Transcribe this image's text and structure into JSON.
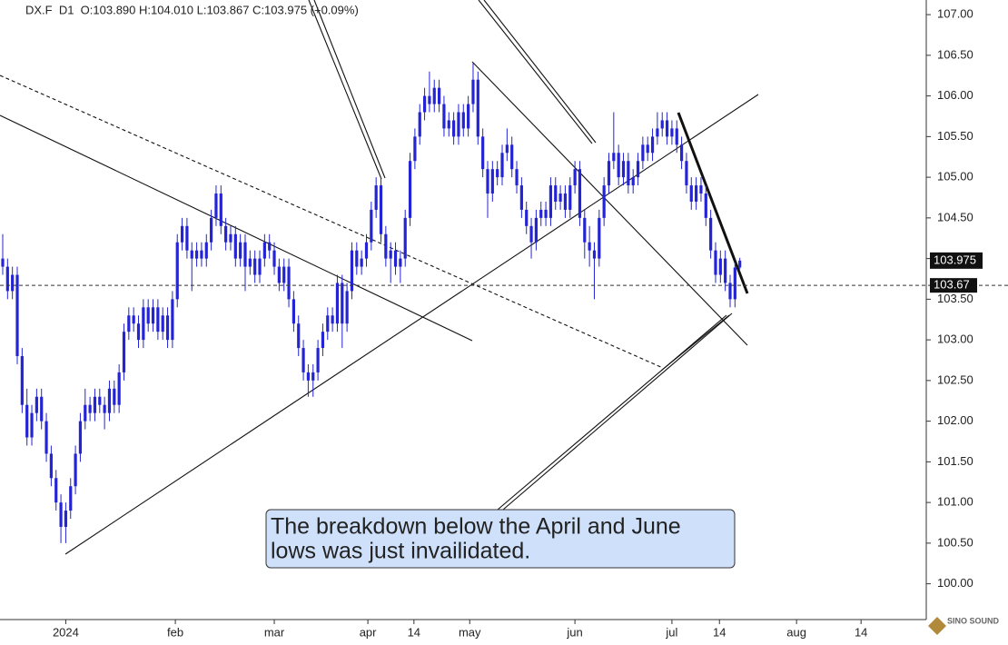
{
  "chart_data": {
    "type": "candlestick",
    "header": "DX.F  D1  O:103.890 H:104.010 L:103.867 C:103.975 (+0.09%)",
    "color": "#2424d4",
    "ylim": [
      99.56,
      107.18
    ],
    "yticks": [
      {
        "value": 100,
        "label": "100.00"
      },
      {
        "value": 100.5,
        "label": "100.50"
      },
      {
        "value": 101,
        "label": "101.00"
      },
      {
        "value": 101.5,
        "label": "101.50"
      },
      {
        "value": 102,
        "label": "102.00"
      },
      {
        "value": 102.5,
        "label": "102.50"
      },
      {
        "value": 103,
        "label": "103.00"
      },
      {
        "value": 103.5,
        "label": "103.50"
      },
      {
        "value": 104,
        "label": "104.00"
      },
      {
        "value": 104.5,
        "label": "104.50"
      },
      {
        "value": 105,
        "label": "105.00"
      },
      {
        "value": 105.5,
        "label": "105.50"
      },
      {
        "value": 106,
        "label": "106.00"
      },
      {
        "value": 106.5,
        "label": "106.50"
      },
      {
        "value": 107,
        "label": "107.00"
      }
    ],
    "xlim": [
      -0.56,
      190.45
    ],
    "xticks": [
      {
        "value": 13,
        "label": "2024"
      },
      {
        "value": 35.6,
        "label": "feb"
      },
      {
        "value": 56,
        "label": "mar"
      },
      {
        "value": 75.3,
        "label": "apr"
      },
      {
        "value": 84.8,
        "label": "14"
      },
      {
        "value": 96.3,
        "label": "may"
      },
      {
        "value": 118,
        "label": "jun"
      },
      {
        "value": 138,
        "label": "jul"
      },
      {
        "value": 147.8,
        "label": "14"
      },
      {
        "value": 163.7,
        "label": "aug"
      },
      {
        "value": 177,
        "label": "14"
      }
    ],
    "hline": 103.67,
    "annotation": [
      "The breakdown below the April and June",
      "lows was just invailidated."
    ],
    "watermark": "SINO SOUND",
    "candles": [
      [
        104.0,
        104.3,
        103.8,
        103.9
      ],
      [
        103.9,
        104.0,
        103.5,
        103.6
      ],
      [
        103.6,
        103.9,
        103.5,
        103.8
      ],
      [
        103.8,
        103.9,
        102.7,
        102.8
      ],
      [
        102.8,
        102.9,
        102.1,
        102.2
      ],
      [
        102.2,
        102.4,
        101.7,
        101.8
      ],
      [
        101.8,
        102.2,
        101.7,
        102.1
      ],
      [
        102.1,
        102.4,
        102.0,
        102.3
      ],
      [
        102.3,
        102.4,
        101.9,
        102.0
      ],
      [
        102.0,
        102.1,
        101.5,
        101.6
      ],
      [
        101.6,
        101.7,
        101.2,
        101.3
      ],
      [
        101.3,
        101.4,
        100.9,
        101.0
      ],
      [
        101.0,
        101.1,
        100.5,
        100.7
      ],
      [
        100.7,
        101.0,
        100.5,
        100.9
      ],
      [
        100.9,
        101.3,
        100.8,
        101.2
      ],
      [
        101.2,
        101.7,
        101.1,
        101.6
      ],
      [
        101.6,
        102.1,
        101.5,
        102.0
      ],
      [
        102.0,
        102.4,
        101.9,
        102.2
      ],
      [
        102.2,
        102.3,
        102.0,
        102.1
      ],
      [
        102.1,
        102.4,
        102.0,
        102.3
      ],
      [
        102.3,
        102.4,
        102.1,
        102.2
      ],
      [
        102.2,
        102.3,
        101.9,
        102.1
      ],
      [
        102.1,
        102.5,
        102.0,
        102.4
      ],
      [
        102.4,
        102.5,
        102.1,
        102.2
      ],
      [
        102.2,
        102.7,
        102.1,
        102.6
      ],
      [
        102.6,
        103.2,
        102.5,
        103.1
      ],
      [
        103.1,
        103.4,
        103.0,
        103.3
      ],
      [
        103.3,
        103.4,
        103.1,
        103.2
      ],
      [
        103.2,
        103.3,
        102.9,
        103.0
      ],
      [
        103.0,
        103.5,
        102.9,
        103.4
      ],
      [
        103.4,
        103.5,
        103.1,
        103.2
      ],
      [
        103.2,
        103.5,
        103.1,
        103.4
      ],
      [
        103.4,
        103.5,
        103.0,
        103.1
      ],
      [
        103.1,
        103.4,
        103.0,
        103.3
      ],
      [
        103.3,
        103.4,
        102.9,
        103.0
      ],
      [
        103.0,
        103.6,
        102.9,
        103.5
      ],
      [
        103.5,
        104.3,
        103.4,
        104.2
      ],
      [
        104.2,
        104.5,
        104.1,
        104.4
      ],
      [
        104.4,
        104.5,
        104.0,
        104.1
      ],
      [
        104.1,
        104.2,
        103.6,
        104.0
      ],
      [
        104.0,
        104.2,
        103.9,
        104.1
      ],
      [
        104.1,
        104.2,
        103.9,
        104.0
      ],
      [
        104.0,
        104.3,
        103.9,
        104.2
      ],
      [
        104.2,
        104.6,
        104.1,
        104.5
      ],
      [
        104.5,
        104.9,
        104.4,
        104.8
      ],
      [
        104.8,
        104.9,
        104.3,
        104.4
      ],
      [
        104.4,
        104.5,
        104.1,
        104.2
      ],
      [
        104.2,
        104.4,
        104.1,
        104.3
      ],
      [
        104.3,
        104.4,
        103.9,
        104.0
      ],
      [
        104.0,
        104.3,
        103.9,
        104.2
      ],
      [
        104.2,
        104.3,
        103.6,
        103.9
      ],
      [
        103.9,
        104.1,
        103.8,
        104.0
      ],
      [
        104.0,
        104.1,
        103.7,
        103.8
      ],
      [
        103.8,
        104.1,
        103.7,
        104.0
      ],
      [
        104.0,
        104.3,
        103.9,
        104.2
      ],
      [
        104.2,
        104.3,
        104.0,
        104.1
      ],
      [
        104.1,
        104.2,
        103.8,
        103.9
      ],
      [
        103.9,
        104.0,
        103.6,
        103.7
      ],
      [
        103.7,
        104.0,
        103.6,
        103.9
      ],
      [
        103.9,
        104.0,
        103.4,
        103.5
      ],
      [
        103.5,
        103.6,
        103.1,
        103.2
      ],
      [
        103.2,
        103.3,
        102.8,
        102.9
      ],
      [
        102.9,
        103.0,
        102.5,
        102.6
      ],
      [
        102.6,
        102.7,
        102.3,
        102.5
      ],
      [
        102.5,
        102.7,
        102.3,
        102.6
      ],
      [
        102.6,
        103.0,
        102.5,
        102.9
      ],
      [
        102.9,
        103.2,
        102.8,
        103.1
      ],
      [
        103.1,
        103.4,
        103.0,
        103.3
      ],
      [
        103.3,
        103.4,
        103.1,
        103.2
      ],
      [
        103.2,
        103.8,
        103.1,
        103.7
      ],
      [
        103.7,
        103.8,
        102.9,
        103.2
      ],
      [
        103.2,
        103.7,
        103.1,
        103.6
      ],
      [
        103.6,
        104.2,
        103.5,
        104.1
      ],
      [
        104.1,
        104.2,
        103.8,
        103.9
      ],
      [
        103.9,
        104.1,
        103.8,
        104.0
      ],
      [
        104.0,
        104.3,
        103.9,
        104.2
      ],
      [
        104.2,
        104.7,
        104.1,
        104.6
      ],
      [
        104.6,
        105.0,
        104.5,
        104.9
      ],
      [
        104.9,
        105.0,
        104.2,
        104.3
      ],
      [
        104.3,
        104.4,
        103.9,
        104.0
      ],
      [
        104.0,
        104.2,
        103.7,
        104.1
      ],
      [
        104.1,
        104.2,
        103.8,
        103.9
      ],
      [
        103.9,
        104.1,
        103.7,
        104.0
      ],
      [
        104.0,
        104.6,
        103.9,
        104.5
      ],
      [
        104.5,
        105.3,
        104.4,
        105.2
      ],
      [
        105.2,
        105.6,
        105.1,
        105.5
      ],
      [
        105.5,
        105.9,
        105.4,
        105.8
      ],
      [
        105.8,
        106.1,
        105.7,
        106.0
      ],
      [
        106.0,
        106.3,
        105.8,
        105.9
      ],
      [
        105.9,
        106.2,
        105.8,
        106.1
      ],
      [
        106.1,
        106.2,
        105.8,
        105.9
      ],
      [
        105.9,
        106.0,
        105.5,
        105.6
      ],
      [
        105.6,
        105.8,
        105.5,
        105.7
      ],
      [
        105.7,
        105.8,
        105.4,
        105.5
      ],
      [
        105.5,
        105.9,
        105.4,
        105.8
      ],
      [
        105.8,
        105.9,
        105.5,
        105.6
      ],
      [
        105.6,
        106.0,
        105.5,
        105.9
      ],
      [
        105.9,
        106.4,
        105.8,
        106.2
      ],
      [
        106.2,
        106.3,
        105.4,
        105.5
      ],
      [
        105.5,
        105.6,
        105.0,
        105.1
      ],
      [
        105.1,
        105.2,
        104.5,
        104.8
      ],
      [
        104.8,
        105.2,
        104.7,
        105.1
      ],
      [
        105.1,
        105.2,
        104.9,
        105.0
      ],
      [
        105.0,
        105.4,
        104.9,
        105.3
      ],
      [
        105.3,
        105.6,
        105.2,
        105.4
      ],
      [
        105.4,
        105.5,
        105.0,
        105.1
      ],
      [
        105.1,
        105.2,
        104.8,
        104.9
      ],
      [
        104.9,
        105.0,
        104.5,
        104.6
      ],
      [
        104.6,
        104.7,
        104.3,
        104.4
      ],
      [
        104.4,
        104.5,
        104.0,
        104.2
      ],
      [
        104.2,
        104.6,
        104.1,
        104.5
      ],
      [
        104.5,
        104.7,
        104.4,
        104.6
      ],
      [
        104.6,
        104.7,
        104.4,
        104.5
      ],
      [
        104.5,
        105.0,
        104.4,
        104.9
      ],
      [
        104.9,
        105.0,
        104.6,
        104.7
      ],
      [
        104.7,
        104.9,
        104.6,
        104.8
      ],
      [
        104.8,
        104.9,
        104.5,
        104.6
      ],
      [
        104.6,
        105.0,
        104.5,
        104.9
      ],
      [
        104.9,
        105.2,
        104.8,
        105.1
      ],
      [
        105.1,
        105.2,
        104.4,
        104.5
      ],
      [
        104.5,
        104.6,
        104.0,
        104.2
      ],
      [
        104.2,
        104.4,
        103.9,
        104.1
      ],
      [
        104.1,
        104.2,
        103.5,
        104.0
      ],
      [
        104.0,
        104.6,
        103.9,
        104.5
      ],
      [
        104.5,
        105.0,
        104.4,
        104.9
      ],
      [
        104.9,
        105.3,
        104.8,
        105.2
      ],
      [
        105.2,
        105.8,
        105.1,
        105.3
      ],
      [
        105.3,
        105.4,
        104.9,
        105.0
      ],
      [
        105.0,
        105.3,
        104.9,
        105.2
      ],
      [
        105.2,
        105.3,
        104.8,
        104.9
      ],
      [
        104.9,
        105.1,
        104.8,
        105.0
      ],
      [
        105.0,
        105.3,
        104.9,
        105.2
      ],
      [
        105.2,
        105.5,
        105.1,
        105.4
      ],
      [
        105.4,
        105.5,
        105.2,
        105.3
      ],
      [
        105.3,
        105.6,
        105.2,
        105.5
      ],
      [
        105.5,
        105.8,
        105.4,
        105.6
      ],
      [
        105.6,
        105.8,
        105.5,
        105.7
      ],
      [
        105.7,
        105.8,
        105.4,
        105.5
      ],
      [
        105.5,
        105.7,
        105.4,
        105.6
      ],
      [
        105.6,
        105.7,
        105.3,
        105.4
      ],
      [
        105.4,
        105.5,
        105.1,
        105.2
      ],
      [
        105.2,
        105.3,
        104.8,
        104.9
      ],
      [
        104.9,
        105.0,
        104.6,
        104.7
      ],
      [
        104.7,
        105.0,
        104.6,
        104.9
      ],
      [
        104.9,
        105.0,
        104.7,
        104.8
      ],
      [
        104.8,
        104.9,
        104.4,
        104.5
      ],
      [
        104.5,
        104.6,
        104.0,
        104.1
      ],
      [
        104.1,
        104.2,
        103.7,
        103.8
      ],
      [
        103.8,
        104.1,
        103.7,
        104.0
      ],
      [
        104.0,
        104.1,
        103.6,
        103.7
      ],
      [
        103.7,
        103.8,
        103.4,
        103.5
      ],
      [
        103.5,
        103.95,
        103.4,
        103.89
      ],
      [
        103.89,
        104.01,
        103.867,
        103.975
      ]
    ]
  }
}
